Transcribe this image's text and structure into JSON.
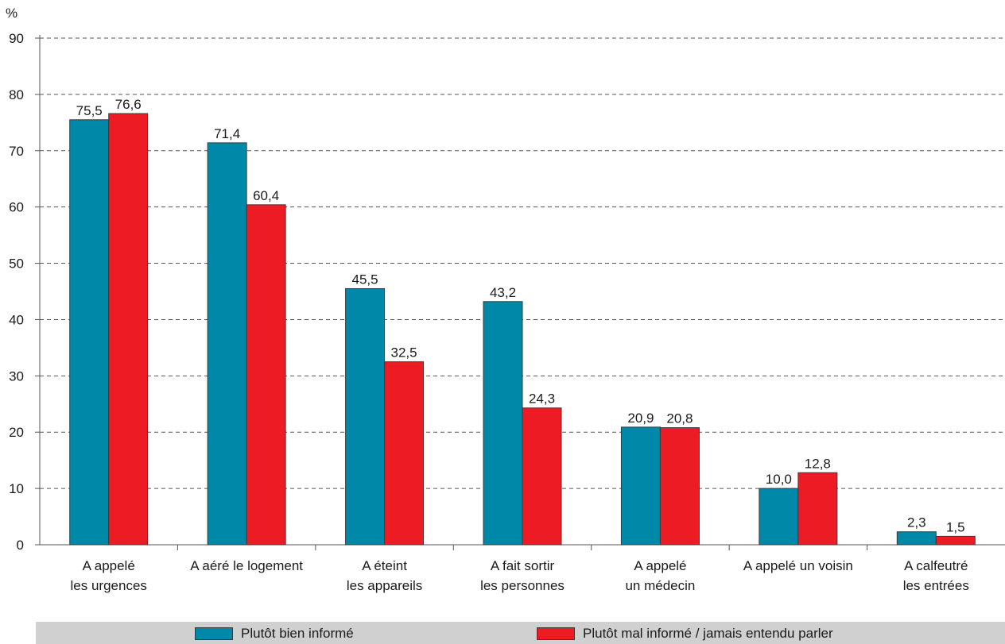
{
  "chart_data": {
    "type": "bar",
    "y_unit": "%",
    "ylim": [
      0,
      90
    ],
    "y_ticks": [
      "0",
      "10",
      "20",
      "30",
      "40",
      "50",
      "60",
      "70",
      "80",
      "90"
    ],
    "grid": "horizontal dashed",
    "categories": [
      [
        "A appelé",
        "les urgences"
      ],
      [
        "A aéré le logement"
      ],
      [
        "A éteint",
        "les appareils"
      ],
      [
        "A fait sortir",
        "les personnes"
      ],
      [
        "A appelé",
        "un médecin"
      ],
      [
        "A appelé un voisin"
      ],
      [
        "A calfeutré",
        "les entrées"
      ]
    ],
    "series": [
      {
        "name": "Plutôt bien informé",
        "color": "#0088a8",
        "values": [
          75.5,
          71.4,
          45.5,
          43.2,
          20.9,
          10.0,
          2.3
        ],
        "labels": [
          "75,5",
          "71,4",
          "45,5",
          "43,2",
          "20,9",
          "10,0",
          "2,3"
        ]
      },
      {
        "name": "Plutôt mal informé / jamais entendu parler",
        "color": "#ed1c24",
        "values": [
          76.6,
          60.4,
          32.5,
          24.3,
          20.8,
          12.8,
          1.5
        ],
        "labels": [
          "76,6",
          "60,4",
          "32,5",
          "24,3",
          "20,8",
          "12,8",
          "1,5"
        ]
      }
    ],
    "legend_placement": "bottom"
  }
}
